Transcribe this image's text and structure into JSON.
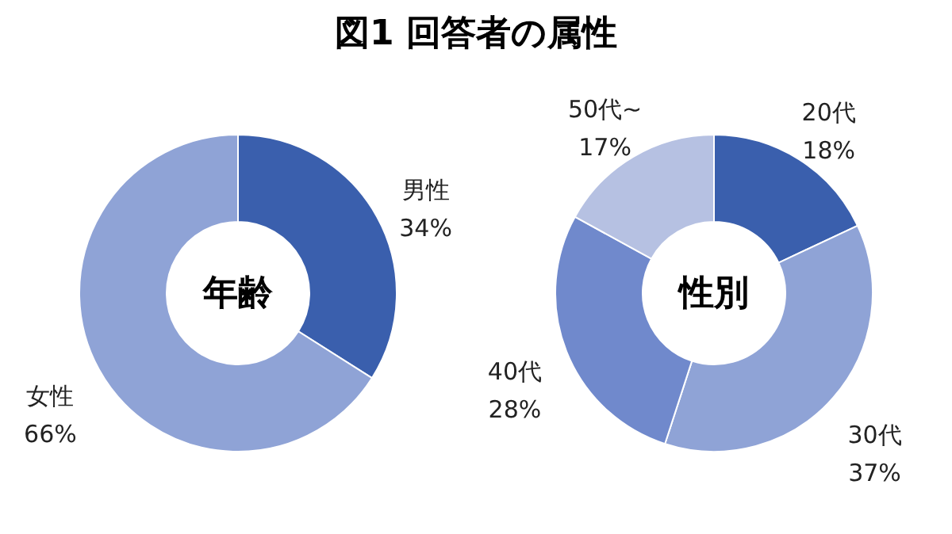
{
  "chart_data": [
    {
      "type": "donut",
      "title": "図1 回答者の属性",
      "annotations": [
        "年齢"
      ],
      "categories": [
        "男性",
        "女性"
      ],
      "values": [
        34,
        66
      ],
      "value_labels": [
        "34%",
        "66%"
      ],
      "colors": [
        "#3a5fad",
        "#8fa3d6"
      ]
    },
    {
      "type": "donut",
      "annotations": [
        "性別"
      ],
      "categories": [
        "20代",
        "30代",
        "40代",
        "50代~"
      ],
      "values": [
        18,
        37,
        28,
        17
      ],
      "value_labels": [
        "18%",
        "37%",
        "28%",
        "17%"
      ],
      "colors": [
        "#3a5fad",
        "#8fa3d6",
        "#7089cc",
        "#b6c1e2"
      ]
    }
  ]
}
